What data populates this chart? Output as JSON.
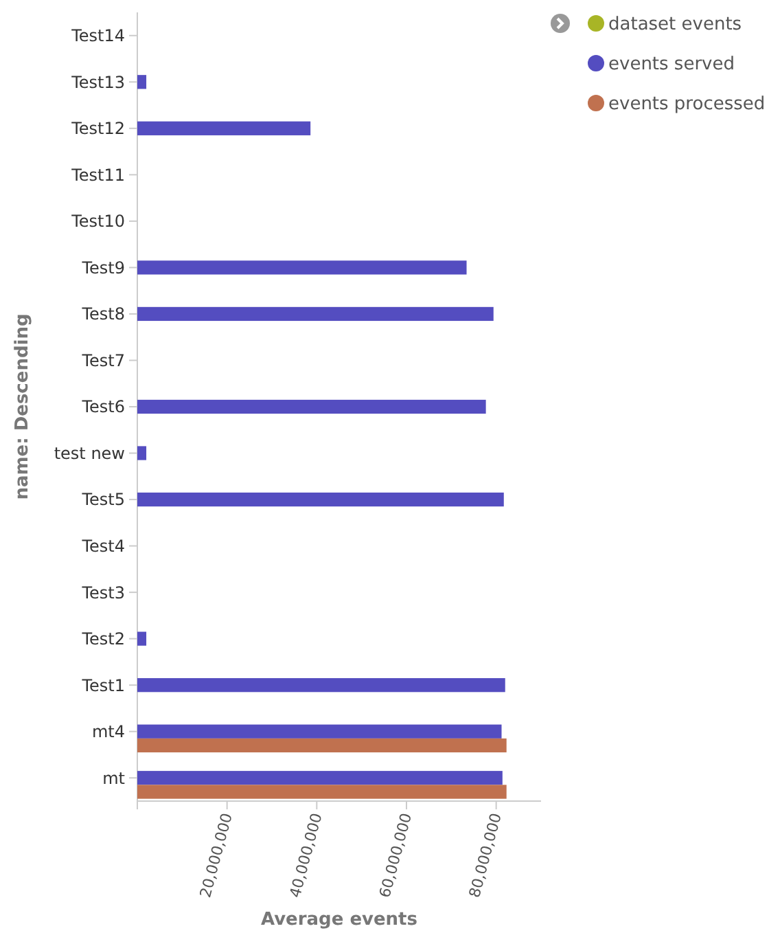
{
  "chart_data": {
    "type": "bar",
    "orientation": "horizontal",
    "xlabel": "Average events",
    "ylabel": "name: Descending",
    "categories": [
      "Test14",
      "Test13",
      "Test12",
      "Test11",
      "Test10",
      "Test9",
      "Test8",
      "Test7",
      "Test6",
      "test new",
      "Test5",
      "Test4",
      "Test3",
      "Test2",
      "Test1",
      "mt4",
      "mt"
    ],
    "series": [
      {
        "name": "dataset events",
        "color": "#a8b526",
        "values": [
          null,
          null,
          null,
          null,
          null,
          null,
          null,
          null,
          null,
          null,
          null,
          null,
          null,
          null,
          null,
          null,
          null
        ]
      },
      {
        "name": "events served",
        "color": "#544dc0",
        "values": [
          null,
          2000000,
          38600000,
          null,
          null,
          73400000,
          79400000,
          null,
          77700000,
          2000000,
          81700000,
          null,
          null,
          2000000,
          82000000,
          81200000,
          81400000
        ]
      },
      {
        "name": "events processed",
        "color": "#c0714f",
        "values": [
          null,
          null,
          null,
          null,
          null,
          null,
          null,
          null,
          null,
          null,
          null,
          null,
          null,
          null,
          null,
          82300000,
          82300000
        ]
      }
    ],
    "xlim": [
      0,
      90000000
    ],
    "xticks": [
      {
        "value": 0,
        "label": null
      },
      {
        "value": 20000000,
        "label": "20,000,000"
      },
      {
        "value": 40000000,
        "label": "40,000,000"
      },
      {
        "value": 60000000,
        "label": "60,000,000"
      },
      {
        "value": 80000000,
        "label": "80,000,000"
      }
    ],
    "legend": "top right",
    "grid": false
  }
}
